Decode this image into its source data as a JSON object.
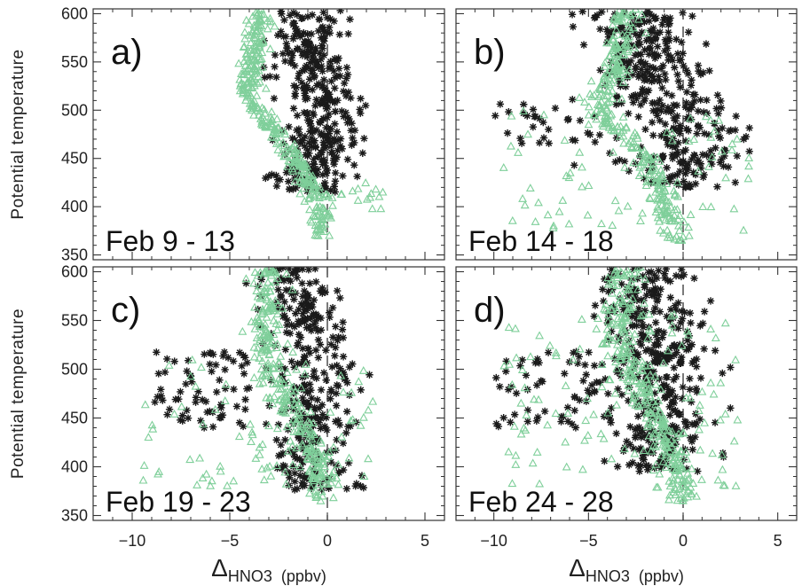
{
  "chart_data": {
    "type": "scatter",
    "ylabel": "Potential temperature",
    "xlabel": {
      "symbol": "Δ",
      "sub": "HNO3",
      "unit": "(ppbv)"
    },
    "xlim": [
      -12,
      6
    ],
    "ylim": [
      345,
      605
    ],
    "xticks": [
      -10,
      -5,
      0,
      5
    ],
    "xtick_labels": [
      "−10",
      "−5",
      "0",
      "5"
    ],
    "yticks": [
      350,
      400,
      450,
      500,
      550,
      600
    ],
    "series_colors": {
      "stars": "#1a1a1a",
      "triangles": "#7fcf9a"
    },
    "markers": {
      "stars": "asterisk",
      "triangles": "open-triangle"
    },
    "reference_line": {
      "x": 0,
      "style": "dashed"
    },
    "panels": [
      {
        "letter": "a)",
        "date": "Feb 9 - 13",
        "stars": {
          "center": [
            [
              600,
              -1.2
            ],
            [
              580,
              -1.1
            ],
            [
              560,
              -1.0
            ],
            [
              540,
              -0.7
            ],
            [
              520,
              -0.5
            ],
            [
              500,
              -0.3
            ],
            [
              480,
              -0.3
            ],
            [
              460,
              -0.5
            ],
            [
              440,
              -0.7
            ],
            [
              420,
              -0.8
            ]
          ],
          "spread": 1.0,
          "x_minmax": [
            -4.0,
            3.0
          ],
          "y_range": [
            415,
            605
          ],
          "count": 360
        },
        "triangles": {
          "center": [
            [
              600,
              -3.5
            ],
            [
              580,
              -3.6
            ],
            [
              560,
              -3.7
            ],
            [
              540,
              -3.9
            ],
            [
              520,
              -4.2
            ],
            [
              500,
              -3.5
            ],
            [
              480,
              -2.7
            ],
            [
              460,
              -2.0
            ],
            [
              440,
              -1.3
            ],
            [
              420,
              -0.8
            ],
            [
              400,
              -0.5
            ],
            [
              385,
              -0.4
            ],
            [
              370,
              -0.3
            ]
          ],
          "spread": 0.3,
          "y_range": [
            365,
            605
          ],
          "count": 340,
          "extra": {
            "x_range": [
              -0.5,
              3.0
            ],
            "y_range": [
              385,
              425
            ],
            "count": 20
          }
        }
      },
      {
        "letter": "b)",
        "date": "Feb 14 - 18",
        "stars": {
          "center": [
            [
              600,
              -2.5
            ],
            [
              570,
              -2.0
            ],
            [
              540,
              -1.5
            ],
            [
              510,
              -1.0
            ],
            [
              480,
              0.5
            ],
            [
              450,
              0.3
            ],
            [
              430,
              0.0
            ]
          ],
          "spread": 1.6,
          "x_minmax": [
            -10.0,
            3.5
          ],
          "y_range": [
            420,
            605
          ],
          "count": 380,
          "extra": {
            "x_range": [
              -10.0,
              -4.0
            ],
            "y_range": [
              465,
              515
            ],
            "count": 30
          }
        },
        "triangles": {
          "center": [
            [
              600,
              -3.0
            ],
            [
              570,
              -3.3
            ],
            [
              540,
              -3.6
            ],
            [
              510,
              -4.5
            ],
            [
              490,
              -4.0
            ],
            [
              470,
              -3.0
            ],
            [
              450,
              -2.0
            ],
            [
              430,
              -1.5
            ],
            [
              410,
              -1.0
            ],
            [
              390,
              -0.7
            ],
            [
              370,
              -0.5
            ]
          ],
          "spread": 0.4,
          "y_range": [
            365,
            605
          ],
          "count": 300,
          "extra": {
            "x_range": [
              -9.5,
              3.5
            ],
            "y_range": [
              375,
              500
            ],
            "count": 70
          }
        }
      },
      {
        "letter": "c)",
        "date": "Feb 19 - 23",
        "stars": {
          "center": [
            [
              600,
              -2.0
            ],
            [
              570,
              -1.5
            ],
            [
              540,
              -1.0
            ],
            [
              510,
              -0.8
            ],
            [
              480,
              -0.5
            ],
            [
              450,
              -0.8
            ],
            [
              420,
              -1.0
            ],
            [
              400,
              -0.8
            ],
            [
              380,
              -0.5
            ]
          ],
          "spread": 1.1,
          "x_minmax": [
            -9.0,
            2.5
          ],
          "y_range": [
            375,
            605
          ],
          "count": 340,
          "extra": {
            "x_range": [
              -9.0,
              -4.0
            ],
            "y_range": [
              440,
              520
            ],
            "count": 70
          }
        },
        "triangles": {
          "center": [
            [
              600,
              -3.0
            ],
            [
              570,
              -3.1
            ],
            [
              540,
              -3.2
            ],
            [
              510,
              -3.0
            ],
            [
              490,
              -2.7
            ],
            [
              470,
              -2.0
            ],
            [
              450,
              -1.5
            ],
            [
              430,
              -1.0
            ],
            [
              410,
              -0.5
            ],
            [
              390,
              -0.3
            ],
            [
              370,
              -0.2
            ]
          ],
          "spread": 0.4,
          "y_range": [
            365,
            605
          ],
          "count": 280,
          "extra": {
            "x_range": [
              -9.5,
              2.5
            ],
            "y_range": [
              380,
              520
            ],
            "count": 90
          }
        }
      },
      {
        "letter": "d)",
        "date": "Feb 24 - 28",
        "stars": {
          "center": [
            [
              600,
              -2.0
            ],
            [
              570,
              -2.0
            ],
            [
              540,
              -1.5
            ],
            [
              510,
              -1.0
            ],
            [
              480,
              -0.8
            ],
            [
              450,
              -1.0
            ],
            [
              420,
              -1.5
            ],
            [
              400,
              -1.5
            ]
          ],
          "spread": 1.2,
          "x_minmax": [
            -10.0,
            2.5
          ],
          "y_range": [
            395,
            605
          ],
          "count": 400,
          "extra": {
            "x_range": [
              -10.0,
              -3.0
            ],
            "y_range": [
              440,
              520
            ],
            "count": 70
          }
        },
        "triangles": {
          "center": [
            [
              600,
              -3.0
            ],
            [
              570,
              -3.2
            ],
            [
              540,
              -3.5
            ],
            [
              510,
              -3.0
            ],
            [
              490,
              -2.5
            ],
            [
              470,
              -2.0
            ],
            [
              450,
              -1.5
            ],
            [
              430,
              -1.0
            ],
            [
              410,
              -0.5
            ],
            [
              390,
              -0.2
            ],
            [
              370,
              0.0
            ]
          ],
          "spread": 0.5,
          "y_range": [
            365,
            605
          ],
          "count": 300,
          "extra": {
            "x_range": [
              -9.5,
              3.0
            ],
            "y_range": [
              380,
              560
            ],
            "count": 120
          }
        }
      }
    ]
  }
}
